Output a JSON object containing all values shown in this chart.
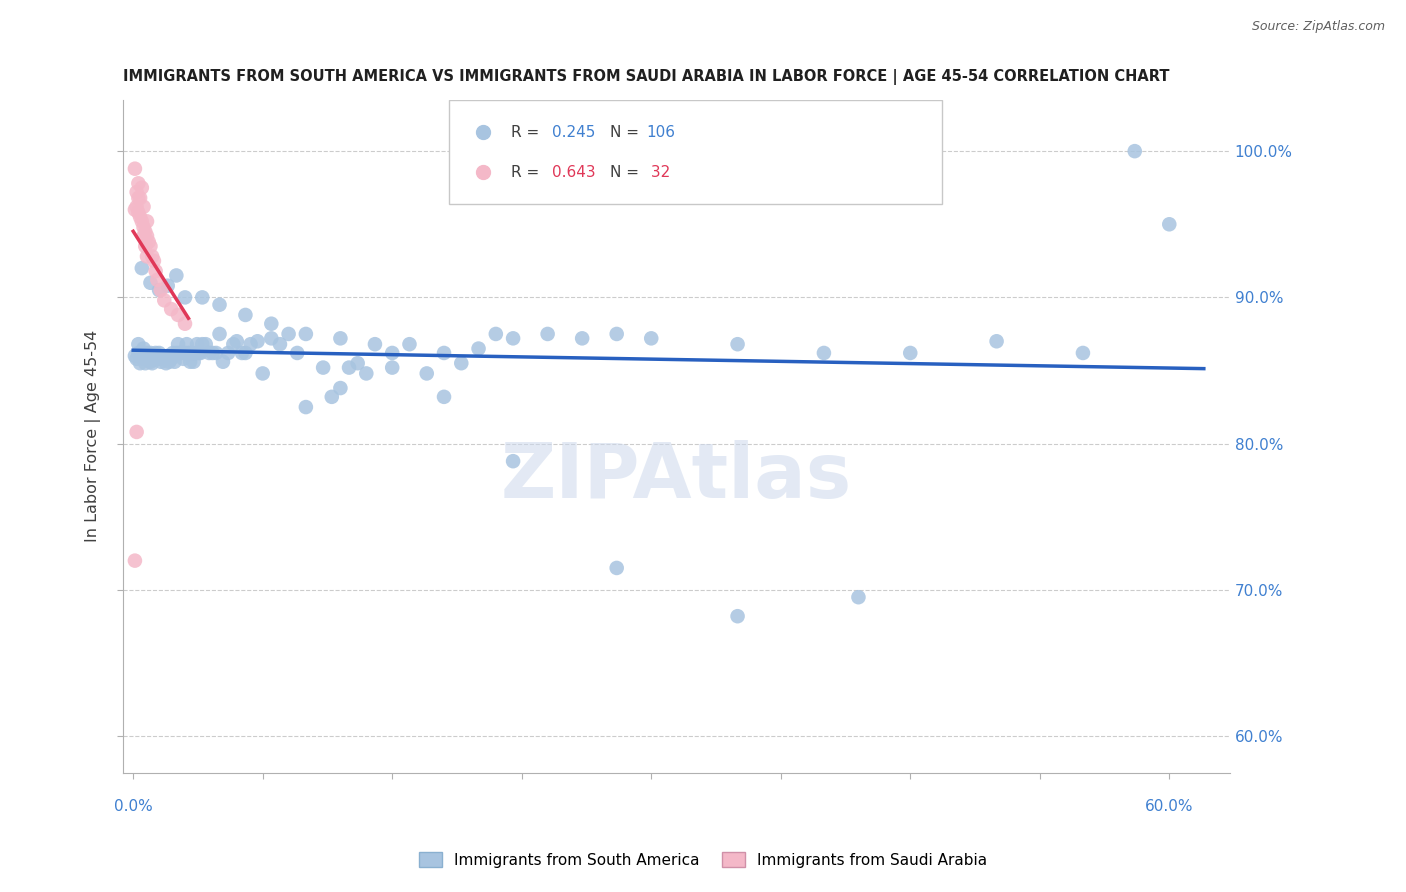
{
  "title": "IMMIGRANTS FROM SOUTH AMERICA VS IMMIGRANTS FROM SAUDI ARABIA IN LABOR FORCE | AGE 45-54 CORRELATION CHART",
  "source": "Source: ZipAtlas.com",
  "ylabel": "In Labor Force | Age 45-54",
  "blue_R": 0.245,
  "blue_N": 106,
  "pink_R": 0.643,
  "pink_N": 32,
  "blue_dot_color": "#a8c4e0",
  "pink_dot_color": "#f4b8c8",
  "blue_line_color": "#2860c0",
  "pink_line_color": "#e03858",
  "grid_color": "#cccccc",
  "title_color": "#202020",
  "axis_tick_color": "#4080d0",
  "watermark_color": "#ccd8ec",
  "legend_label_blue": "Immigrants from South America",
  "legend_label_pink": "Immigrants from Saudi Arabia",
  "y_min": 0.575,
  "y_max": 1.035,
  "x_min": -0.006,
  "x_max": 0.635,
  "south_america_x": [
    0.001,
    0.002,
    0.003,
    0.003,
    0.004,
    0.005,
    0.006,
    0.006,
    0.007,
    0.008,
    0.009,
    0.01,
    0.01,
    0.011,
    0.012,
    0.013,
    0.014,
    0.015,
    0.016,
    0.017,
    0.018,
    0.019,
    0.02,
    0.021,
    0.022,
    0.023,
    0.024,
    0.025,
    0.026,
    0.027,
    0.028,
    0.029,
    0.03,
    0.031,
    0.032,
    0.033,
    0.034,
    0.035,
    0.036,
    0.037,
    0.038,
    0.039,
    0.04,
    0.042,
    0.044,
    0.046,
    0.048,
    0.05,
    0.052,
    0.055,
    0.058,
    0.06,
    0.063,
    0.065,
    0.068,
    0.072,
    0.075,
    0.08,
    0.085,
    0.09,
    0.095,
    0.1,
    0.11,
    0.115,
    0.12,
    0.125,
    0.13,
    0.135,
    0.14,
    0.15,
    0.16,
    0.17,
    0.18,
    0.19,
    0.2,
    0.21,
    0.22,
    0.24,
    0.26,
    0.28,
    0.3,
    0.35,
    0.4,
    0.45,
    0.5,
    0.55,
    0.58,
    0.6,
    0.005,
    0.01,
    0.015,
    0.02,
    0.025,
    0.03,
    0.04,
    0.05,
    0.065,
    0.08,
    0.1,
    0.12,
    0.15,
    0.18,
    0.22,
    0.28,
    0.35,
    0.42
  ],
  "south_america_y": [
    0.86,
    0.858,
    0.862,
    0.868,
    0.855,
    0.862,
    0.858,
    0.865,
    0.855,
    0.862,
    0.858,
    0.862,
    0.856,
    0.855,
    0.858,
    0.862,
    0.858,
    0.862,
    0.856,
    0.858,
    0.858,
    0.855,
    0.86,
    0.856,
    0.858,
    0.862,
    0.856,
    0.862,
    0.868,
    0.862,
    0.862,
    0.858,
    0.862,
    0.868,
    0.862,
    0.856,
    0.862,
    0.856,
    0.862,
    0.868,
    0.862,
    0.862,
    0.868,
    0.868,
    0.862,
    0.862,
    0.862,
    0.875,
    0.856,
    0.862,
    0.868,
    0.87,
    0.862,
    0.862,
    0.868,
    0.87,
    0.848,
    0.872,
    0.868,
    0.875,
    0.862,
    0.825,
    0.852,
    0.832,
    0.838,
    0.852,
    0.855,
    0.848,
    0.868,
    0.852,
    0.868,
    0.848,
    0.862,
    0.855,
    0.865,
    0.875,
    0.872,
    0.875,
    0.872,
    0.875,
    0.872,
    0.868,
    0.862,
    0.862,
    0.87,
    0.862,
    1.0,
    0.95,
    0.92,
    0.91,
    0.905,
    0.908,
    0.915,
    0.9,
    0.9,
    0.895,
    0.888,
    0.882,
    0.875,
    0.872,
    0.862,
    0.832,
    0.788,
    0.715,
    0.682,
    0.695
  ],
  "saudi_arabia_x": [
    0.001,
    0.002,
    0.003,
    0.003,
    0.004,
    0.005,
    0.006,
    0.006,
    0.007,
    0.008,
    0.008,
    0.009,
    0.01,
    0.011,
    0.012,
    0.013,
    0.014,
    0.016,
    0.018,
    0.022,
    0.026,
    0.03,
    0.001,
    0.002,
    0.003,
    0.004,
    0.005,
    0.006,
    0.007,
    0.008,
    0.002,
    0.001
  ],
  "saudi_arabia_y": [
    0.96,
    0.962,
    0.958,
    0.968,
    0.955,
    0.952,
    0.948,
    0.962,
    0.945,
    0.942,
    0.952,
    0.938,
    0.935,
    0.928,
    0.925,
    0.918,
    0.912,
    0.905,
    0.898,
    0.892,
    0.888,
    0.882,
    0.988,
    0.972,
    0.978,
    0.968,
    0.975,
    0.942,
    0.935,
    0.928,
    0.808,
    0.72
  ]
}
